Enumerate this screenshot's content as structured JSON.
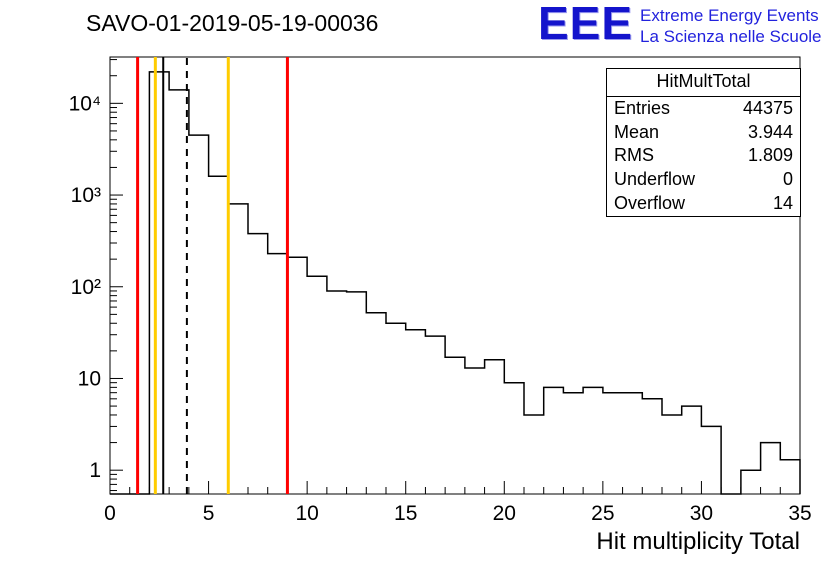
{
  "title": "SAVO-01-2019-05-19-00036",
  "logo": {
    "text": "EEE",
    "line1": "Extreme Energy Events",
    "line2": "La Scienza nelle Scuole",
    "color": "#1414cc"
  },
  "stats": {
    "title": "HitMultTotal",
    "rows": [
      {
        "label": "Entries",
        "value": "44375"
      },
      {
        "label": "Mean",
        "value": "3.944"
      },
      {
        "label": "RMS",
        "value": "1.809"
      },
      {
        "label": "Underflow",
        "value": "0"
      },
      {
        "label": "Overflow",
        "value": "14"
      }
    ]
  },
  "chart_data": {
    "type": "bar",
    "subtype": "step-histogram",
    "title": "SAVO-01-2019-05-19-00036",
    "xlabel": "Hit multiplicity Total",
    "ylabel": "",
    "xlim": [
      0,
      35
    ],
    "ylim": [
      0.55,
      32000
    ],
    "yscale": "log",
    "grid": false,
    "bin_width": 1,
    "bin_start": 0,
    "x_major_ticks": [
      0,
      5,
      10,
      15,
      20,
      25,
      30,
      35
    ],
    "y_major_ticks": {
      "values": [
        1,
        10,
        100,
        1000,
        10000
      ],
      "labels": [
        "1",
        "10",
        "10²",
        "10³",
        "10⁴"
      ]
    },
    "values": [
      0,
      0,
      22000,
      14000,
      4500,
      1600,
      800,
      380,
      230,
      210,
      130,
      90,
      88,
      52,
      40,
      34,
      29,
      17,
      13,
      16,
      9,
      4,
      8,
      7,
      8,
      7,
      7,
      6,
      4,
      5,
      3,
      0,
      1,
      2,
      1.3
    ],
    "line_color": "#000000",
    "marker_lines": [
      {
        "x": 1.4,
        "color": "#ff0000",
        "style": "solid"
      },
      {
        "x": 2.3,
        "color": "#ffcc00",
        "style": "solid"
      },
      {
        "x": 2.7,
        "color": "#000000",
        "style": "solid"
      },
      {
        "x": 3.9,
        "color": "#000000",
        "style": "dashed"
      },
      {
        "x": 6.0,
        "color": "#ffcc00",
        "style": "solid"
      },
      {
        "x": 9.0,
        "color": "#ff0000",
        "style": "solid"
      }
    ]
  }
}
